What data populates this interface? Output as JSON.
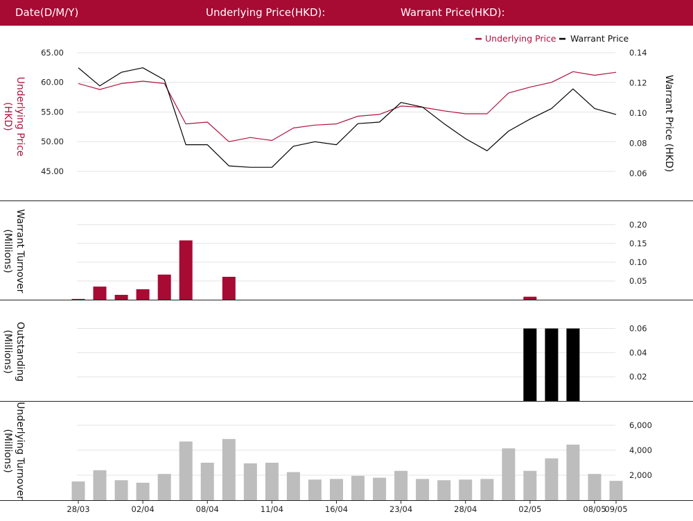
{
  "header": {
    "date_label": "Date(D/M/Y)",
    "underlying_label": "Underlying Price(HKD):",
    "warrant_label": "Warrant Price(HKD):"
  },
  "colors": {
    "brand": "#a70a33",
    "underlying": "#b0123f",
    "warrant": "#000000",
    "outstanding": "#000000",
    "underlying_turnover": "#bdbdbd",
    "grid": "#e3e3e3"
  },
  "chart_data": [
    {
      "type": "line",
      "legend": [
        "Underlying Price",
        "Warrant Price"
      ],
      "legend_position": "top-right",
      "left_axis": {
        "title": "Underlying Price (HKD)",
        "ticks": [
          "65.00",
          "60.00",
          "55.00",
          "50.00",
          "45.00"
        ],
        "range": [
          40.2,
          66.4
        ]
      },
      "right_axis": {
        "title": "Warrant  Price (HKD)",
        "ticks": [
          "0.14",
          "0.12",
          "0.10",
          "0.08",
          "0.06"
        ],
        "range": [
          0.0425,
          0.1455
        ]
      },
      "series": [
        {
          "name": "Underlying Price",
          "axis": "left",
          "values": [
            59.8,
            58.8,
            59.8,
            60.2,
            59.8,
            53.0,
            53.3,
            50.0,
            50.7,
            50.2,
            52.3,
            52.8,
            53.0,
            54.3,
            54.6,
            56.0,
            55.8,
            55.2,
            54.7,
            54.7,
            58.2,
            59.2,
            60.0,
            61.8,
            61.2,
            61.7
          ]
        },
        {
          "name": "Warrant Price",
          "axis": "right",
          "values": [
            0.13,
            0.118,
            0.127,
            0.13,
            0.122,
            0.079,
            0.079,
            0.065,
            0.064,
            0.064,
            0.078,
            0.081,
            0.079,
            0.093,
            0.094,
            0.107,
            0.104,
            0.093,
            0.083,
            0.075,
            0.088,
            0.096,
            0.103,
            0.116,
            0.103,
            0.099
          ]
        }
      ]
    },
    {
      "type": "bar",
      "title": "Warrant  Turnover (Millions)",
      "ticks": [
        "0.20",
        "0.15",
        "0.10",
        "0.05"
      ],
      "range": [
        0,
        0.22
      ],
      "values": [
        0.002,
        0.035,
        0.013,
        0.028,
        0.067,
        0.158,
        0,
        0.061,
        0,
        0,
        0,
        0,
        0,
        0,
        0,
        0,
        0,
        0,
        0,
        0,
        0,
        0.008,
        0,
        0,
        0,
        0
      ]
    },
    {
      "type": "bar",
      "title": "Outstanding (Millions)",
      "ticks": [
        "0.06",
        "0.04",
        "0.02"
      ],
      "range": [
        0,
        0.066
      ],
      "values": [
        0,
        0,
        0,
        0,
        0,
        0,
        0,
        0,
        0,
        0,
        0,
        0,
        0,
        0,
        0,
        0,
        0,
        0,
        0,
        0,
        0,
        0.06,
        0.06,
        0.06,
        0,
        0
      ]
    },
    {
      "type": "bar",
      "title": "Underlying Turnover (Millions)",
      "ticks": [
        "6,000",
        "4,000",
        "2,000"
      ],
      "range": [
        0,
        6000
      ],
      "values": [
        1500,
        2400,
        1600,
        1400,
        2100,
        4700,
        3000,
        4900,
        2950,
        3000,
        2250,
        1650,
        1700,
        1950,
        1800,
        2350,
        1700,
        1600,
        1650,
        1700,
        4150,
        2350,
        3350,
        4450,
        2100,
        1550
      ]
    }
  ],
  "x_axis": {
    "ticks": [
      {
        "label": "28/03",
        "index": 0
      },
      {
        "label": "02/04",
        "index": 3
      },
      {
        "label": "08/04",
        "index": 6
      },
      {
        "label": "11/04",
        "index": 9
      },
      {
        "label": "16/04",
        "index": 12
      },
      {
        "label": "23/04",
        "index": 15
      },
      {
        "label": "28/04",
        "index": 18
      },
      {
        "label": "02/05",
        "index": 21
      },
      {
        "label": "08/05",
        "index": 24
      },
      {
        "label": "09/05",
        "index": 25
      }
    ]
  }
}
